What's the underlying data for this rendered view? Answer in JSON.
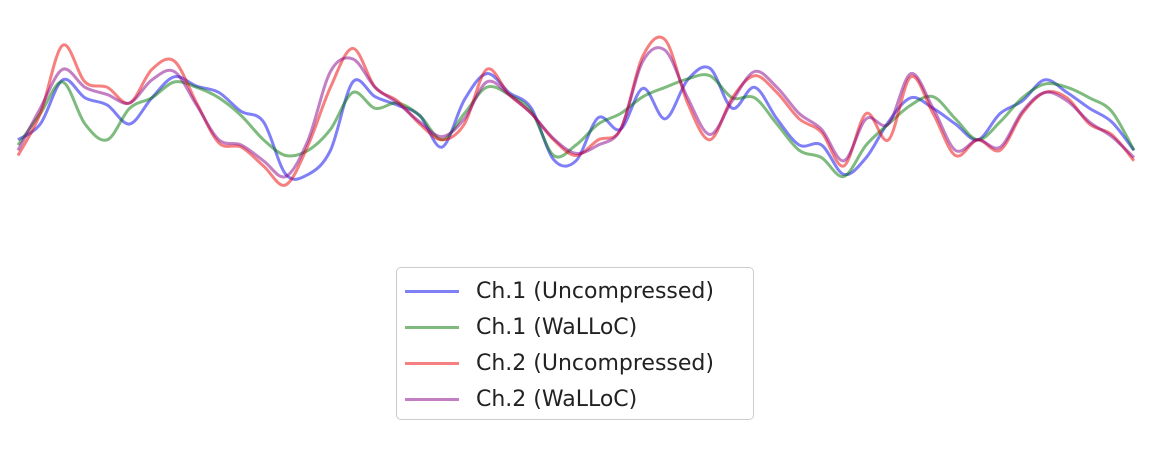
{
  "chart_data": {
    "type": "line",
    "title": "",
    "xlabel": "",
    "ylabel": "",
    "axes_visible": false,
    "grid": false,
    "legend_placement": "lower center",
    "x": [
      0,
      2,
      4,
      6,
      8,
      10,
      12,
      14,
      16,
      18,
      20,
      22,
      24,
      26,
      28,
      30,
      32,
      34,
      36,
      38,
      40,
      42,
      44,
      46,
      48,
      50,
      52,
      54,
      56,
      58,
      60,
      62,
      64,
      66,
      68,
      70,
      72,
      74,
      76,
      78,
      80,
      82,
      84,
      86,
      88,
      90,
      92,
      94,
      96,
      98,
      100
    ],
    "ylim": [
      -1,
      1
    ],
    "series": [
      {
        "name": "Ch.1 (Uncompressed)",
        "color": "#0000ee",
        "opacity": 0.5,
        "values": [
          0.05,
          0.2,
          0.62,
          0.45,
          0.38,
          0.2,
          0.45,
          0.65,
          0.56,
          0.5,
          0.32,
          0.22,
          -0.28,
          -0.28,
          -0.05,
          0.6,
          0.46,
          0.38,
          0.28,
          -0.02,
          0.43,
          0.68,
          0.5,
          0.35,
          -0.14,
          -0.15,
          0.26,
          0.15,
          0.54,
          0.25,
          0.62,
          0.73,
          0.35,
          0.55,
          0.25,
          0.0,
          0.0,
          -0.28,
          -0.12,
          0.22,
          0.45,
          0.35,
          0.2,
          0.05,
          0.3,
          0.42,
          0.62,
          0.5,
          0.35,
          0.22,
          -0.05
        ]
      },
      {
        "name": "Ch.1 (WaLLoC)",
        "color": "#007700",
        "opacity": 0.5,
        "values": [
          0.0,
          0.3,
          0.6,
          0.2,
          0.05,
          0.35,
          0.45,
          0.6,
          0.55,
          0.45,
          0.28,
          0.05,
          -0.1,
          -0.05,
          0.15,
          0.5,
          0.35,
          0.4,
          0.28,
          0.05,
          0.3,
          0.55,
          0.48,
          0.32,
          -0.1,
          0.0,
          0.2,
          0.3,
          0.46,
          0.55,
          0.63,
          0.66,
          0.45,
          0.45,
          0.2,
          -0.05,
          -0.12,
          -0.3,
          0.0,
          0.2,
          0.38,
          0.46,
          0.25,
          0.05,
          0.22,
          0.45,
          0.58,
          0.55,
          0.45,
          0.32,
          -0.05
        ]
      },
      {
        "name": "Ch.2 (Uncompressed)",
        "color": "#ee0000",
        "opacity": 0.5,
        "values": [
          -0.1,
          0.3,
          0.95,
          0.6,
          0.55,
          0.4,
          0.72,
          0.8,
          0.4,
          0.02,
          -0.02,
          -0.2,
          -0.38,
          0.0,
          0.55,
          0.92,
          0.55,
          0.42,
          0.2,
          0.05,
          0.2,
          0.72,
          0.48,
          0.3,
          0.05,
          -0.1,
          0.05,
          0.15,
          0.85,
          1.0,
          0.4,
          0.05,
          0.45,
          0.66,
          0.5,
          0.25,
          0.12,
          -0.2,
          0.3,
          0.05,
          0.65,
          0.3,
          -0.1,
          0.05,
          -0.05,
          0.3,
          0.5,
          0.45,
          0.2,
          0.1,
          -0.15
        ]
      },
      {
        "name": "Ch.2 (WaLLoC)",
        "color": "#880088",
        "opacity": 0.5,
        "values": [
          -0.05,
          0.35,
          0.72,
          0.55,
          0.48,
          0.4,
          0.62,
          0.7,
          0.38,
          0.05,
          0.0,
          -0.15,
          -0.3,
          0.05,
          0.7,
          0.82,
          0.55,
          0.4,
          0.22,
          0.08,
          0.25,
          0.6,
          0.48,
          0.3,
          0.06,
          -0.08,
          0.0,
          0.15,
          0.8,
          0.9,
          0.45,
          0.1,
          0.42,
          0.7,
          0.55,
          0.3,
          0.15,
          -0.15,
          0.25,
          0.2,
          0.68,
          0.35,
          -0.05,
          0.05,
          -0.02,
          0.32,
          0.5,
          0.42,
          0.22,
          0.08,
          -0.12
        ]
      }
    ]
  }
}
